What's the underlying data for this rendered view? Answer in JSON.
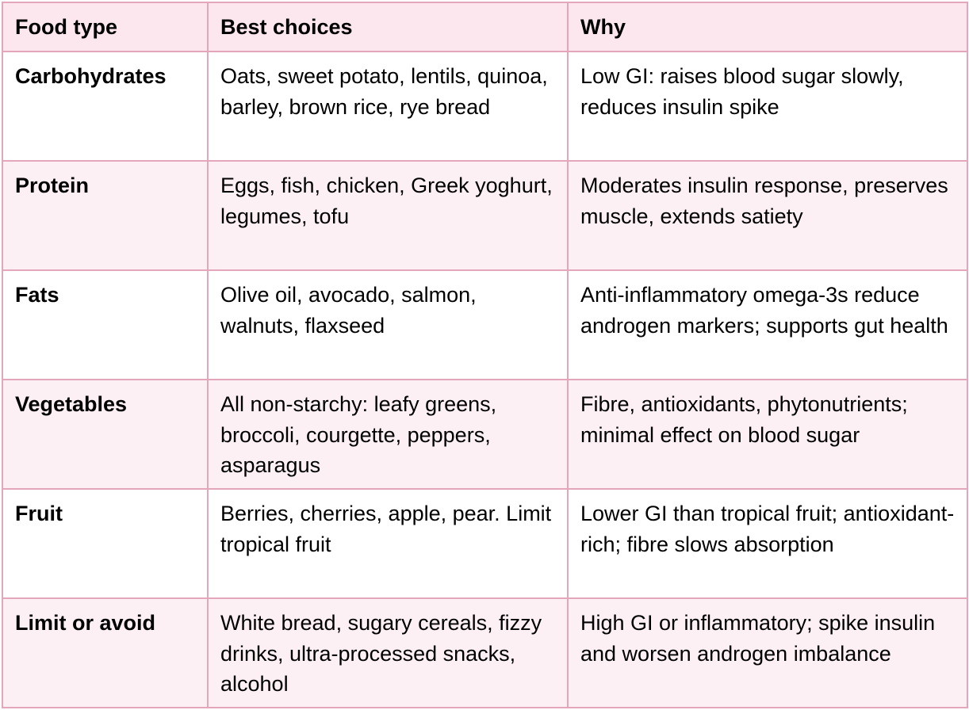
{
  "table": {
    "headers": [
      "Food type",
      "Best choices",
      "Why"
    ],
    "rows": [
      {
        "food_type": "Carbohydrates",
        "best_choices": "Oats, sweet potato, lentils, quinoa, barley, brown rice, rye bread",
        "why": "Low GI: raises blood sugar slowly, reduces insulin spike"
      },
      {
        "food_type": "Protein",
        "best_choices": "Eggs, fish, chicken, Greek yoghurt, legumes, tofu",
        "why": "Moderates insulin response, preserves muscle, extends satiety"
      },
      {
        "food_type": "Fats",
        "best_choices": "Olive oil, avocado, salmon, walnuts, flaxseed",
        "why": "Anti-inflammatory omega-3s reduce androgen markers; supports gut health"
      },
      {
        "food_type": "Vegetables",
        "best_choices": "All non-starchy: leafy greens, broccoli, courgette, peppers, asparagus",
        "why": "Fibre, antioxidants, phytonutrients; minimal effect on blood sugar"
      },
      {
        "food_type": "Fruit",
        "best_choices": "Berries, cherries, apple, pear. Limit tropical fruit",
        "why": "Lower GI than tropical fruit; antioxidant-rich; fibre slows absorption"
      },
      {
        "food_type": "Limit or avoid",
        "best_choices": "White bread, sugary cereals, fizzy drinks, ultra-processed snacks, alcohol",
        "why": "High GI or inflammatory; spike insulin and worsen androgen imbalance"
      }
    ]
  },
  "colors": {
    "border": "#e3a6bb",
    "header_background": "#fce7ef",
    "alternate_row_background": "#fdf0f4",
    "row_background": "#ffffff",
    "text": "#000000"
  }
}
